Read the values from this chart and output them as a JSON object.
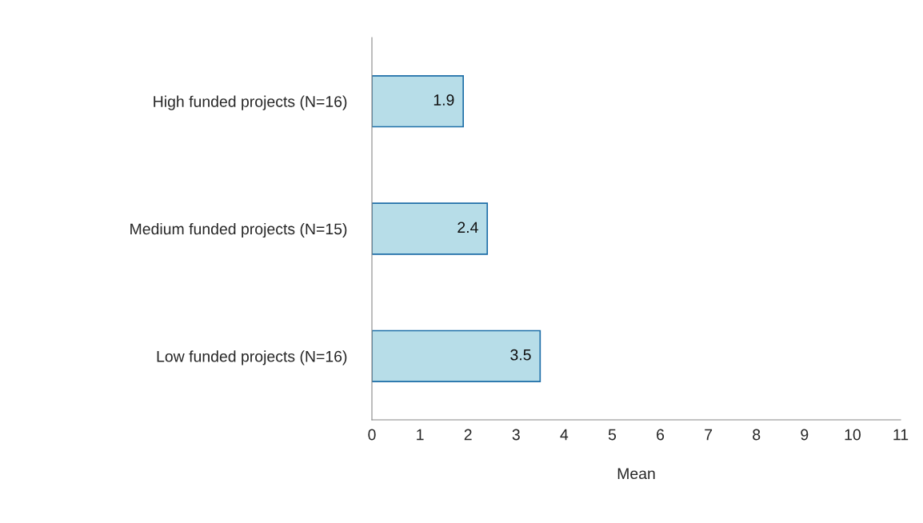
{
  "chart_data": {
    "type": "bar",
    "orientation": "horizontal",
    "xlabel": "Mean",
    "categories": [
      "High funded projects (N=16)",
      "Medium funded projects (N=15)",
      "Low funded projects (N=16)"
    ],
    "values": [
      1.9,
      2.4,
      3.5
    ],
    "color": "#b7dde8",
    "xlim": [
      0,
      11
    ],
    "xticks": [
      0,
      1,
      2,
      3,
      4,
      5,
      6,
      7,
      8,
      9,
      10,
      11
    ],
    "data_labels": true,
    "grid": false,
    "legend": false
  }
}
